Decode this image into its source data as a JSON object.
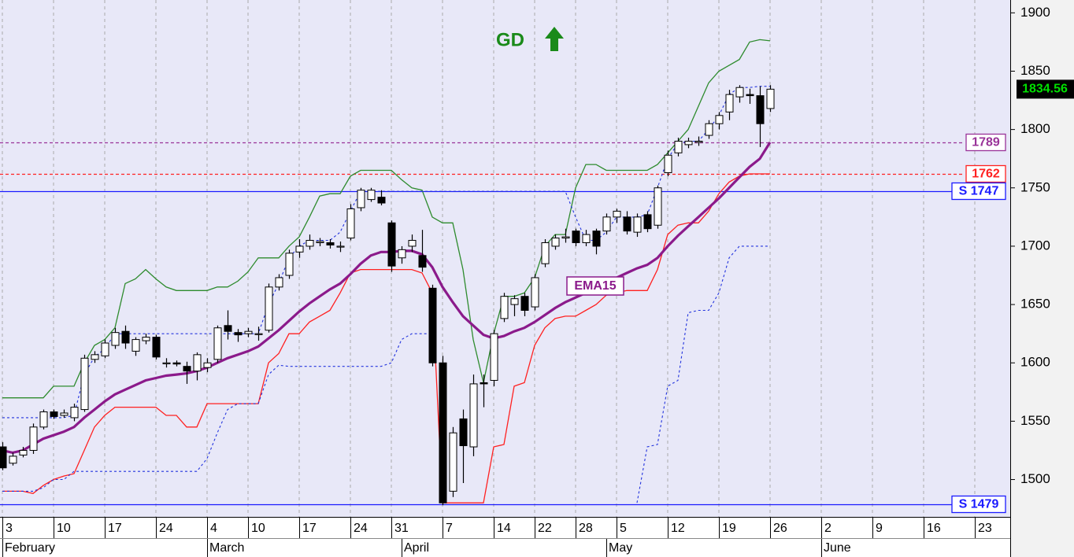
{
  "chart_data": {
    "type": "candlestick",
    "signal": {
      "text": "GD",
      "color": "#1a8a1a"
    },
    "categories": [
      "3",
      null,
      null,
      null,
      null,
      "10",
      null,
      null,
      null,
      null,
      "17",
      null,
      null,
      null,
      null,
      "24",
      null,
      null,
      null,
      null,
      "4",
      null,
      null,
      null,
      "10",
      null,
      null,
      null,
      null,
      "17",
      null,
      null,
      null,
      null,
      "24",
      null,
      null,
      null,
      "31",
      null,
      null,
      null,
      null,
      "7",
      null,
      null,
      null,
      null,
      "14",
      null,
      null,
      null,
      "22",
      null,
      null,
      null,
      "28",
      null,
      null,
      null,
      "5",
      null,
      null,
      null,
      null,
      "12",
      null,
      null,
      null,
      null,
      "19",
      null,
      null,
      null,
      null,
      "26",
      null,
      null,
      null,
      null,
      "2",
      null,
      null,
      null,
      null,
      "9",
      null,
      null,
      null,
      null,
      "16",
      null,
      null,
      null,
      null,
      "23",
      null,
      null,
      null
    ],
    "months": [
      "February",
      null,
      null,
      null,
      null,
      null,
      null,
      null,
      null,
      null,
      null,
      null,
      null,
      null,
      null,
      null,
      null,
      null,
      null,
      null,
      "March",
      null,
      null,
      null,
      null,
      null,
      null,
      null,
      null,
      null,
      null,
      null,
      null,
      null,
      null,
      null,
      null,
      null,
      null,
      "April",
      null,
      null,
      null,
      null,
      null,
      null,
      null,
      null,
      null,
      null,
      null,
      null,
      null,
      null,
      null,
      null,
      null,
      null,
      null,
      "May",
      null,
      null,
      null,
      null,
      null,
      null,
      null,
      null,
      null,
      null,
      null,
      null,
      null,
      null,
      null,
      null,
      null,
      null,
      null,
      null,
      "June",
      null,
      null,
      null,
      null,
      null,
      null,
      null,
      null,
      null,
      null,
      null,
      null,
      null,
      null,
      null,
      null,
      null,
      null
    ],
    "open": [
      1528,
      1514,
      1521,
      1525,
      1545,
      1558,
      1555,
      1553,
      1560,
      1603,
      1606,
      1615,
      1627,
      1610,
      1619,
      1622,
      1600,
      1600,
      1597,
      1593,
      1596,
      1603,
      1632,
      1626,
      1625,
      1625,
      1628,
      1665,
      1675,
      1695,
      1700,
      1703,
      1703,
      1700,
      1707,
      1733,
      1740,
      1742,
      1720,
      1690,
      1700,
      1692,
      1664,
      1600,
      1490,
      1552,
      1528,
      1583,
      1585,
      1638,
      1650,
      1657,
      1648,
      1685,
      1700,
      1707,
      1713,
      1703,
      1713,
      1713,
      1725,
      1725,
      1712,
      1727,
      1718,
      1763,
      1780,
      1787,
      1789,
      1795,
      1805,
      1815,
      1828,
      1830,
      1829,
      1818,
      null,
      null,
      null,
      null,
      null,
      null,
      null,
      null,
      null,
      null,
      null,
      null,
      null,
      null,
      null,
      null,
      null,
      null,
      null,
      null,
      null,
      null,
      null
    ],
    "high": [
      1532,
      1523,
      1528,
      1548,
      1560,
      1560,
      1560,
      1565,
      1607,
      1610,
      1620,
      1630,
      1632,
      1622,
      1625,
      1624,
      1604,
      1602,
      1601,
      1609,
      1604,
      1632,
      1645,
      1629,
      1630,
      1631,
      1668,
      1676,
      1697,
      1706,
      1710,
      1707,
      1706,
      1704,
      1736,
      1750,
      1750,
      1748,
      1722,
      1700,
      1710,
      1714,
      1667,
      1606,
      1545,
      1560,
      1590,
      1590,
      1628,
      1660,
      1658,
      1660,
      1676,
      1706,
      1710,
      1715,
      1715,
      1714,
      1715,
      1728,
      1732,
      1730,
      1728,
      1730,
      1752,
      1782,
      1793,
      1793,
      1794,
      1808,
      1815,
      1834,
      1838,
      1835,
      1837,
      1838,
      null,
      null,
      null,
      null,
      null,
      null,
      null,
      null,
      null,
      null,
      null,
      null,
      null,
      null,
      null,
      null,
      null,
      null,
      null,
      null,
      null,
      null,
      null
    ],
    "low": [
      1508,
      1512,
      1519,
      1522,
      1543,
      1552,
      1553,
      1550,
      1558,
      1600,
      1604,
      1612,
      1612,
      1606,
      1616,
      1603,
      1596,
      1597,
      1582,
      1585,
      1592,
      1600,
      1620,
      1618,
      1622,
      1619,
      1626,
      1662,
      1672,
      1690,
      1697,
      1700,
      1698,
      1695,
      1705,
      1730,
      1738,
      1735,
      1678,
      1685,
      1695,
      1678,
      1597,
      1478,
      1485,
      1497,
      1520,
      1562,
      1580,
      1635,
      1640,
      1640,
      1645,
      1682,
      1697,
      1703,
      1700,
      1700,
      1693,
      1710,
      1720,
      1710,
      1708,
      1712,
      1715,
      1760,
      1777,
      1784,
      1786,
      1792,
      1800,
      1808,
      1823,
      1822,
      1785,
      1815,
      null,
      null,
      null,
      null,
      null,
      null,
      null,
      null,
      null,
      null,
      null,
      null,
      null,
      null,
      null,
      null,
      null,
      null,
      null,
      null,
      null,
      null,
      null
    ],
    "close": [
      1510,
      1520,
      1525,
      1545,
      1558,
      1554,
      1557,
      1562,
      1604,
      1607,
      1617,
      1626,
      1617,
      1620,
      1622,
      1605,
      1600,
      1599,
      1593,
      1607,
      1600,
      1630,
      1627,
      1624,
      1627,
      1625,
      1665,
      1673,
      1694,
      1700,
      1705,
      1704,
      1701,
      1700,
      1732,
      1748,
      1748,
      1737,
      1683,
      1697,
      1705,
      1682,
      1600,
      1480,
      1540,
      1529,
      1582,
      1582,
      1625,
      1657,
      1655,
      1645,
      1673,
      1703,
      1707,
      1708,
      1703,
      1710,
      1700,
      1725,
      1730,
      1713,
      1725,
      1715,
      1750,
      1778,
      1790,
      1790,
      1790,
      1805,
      1812,
      1830,
      1836,
      1829,
      1805,
      1834.56,
      null,
      null,
      null,
      null,
      null,
      null,
      null,
      null,
      null,
      null,
      null,
      null,
      null,
      null,
      null,
      null,
      null,
      null,
      null,
      null,
      null,
      null,
      null
    ],
    "lines": [
      {
        "color": "#2e8b2e",
        "width": 1.3,
        "dashed": false,
        "values": [
          1570,
          1570,
          1570,
          1570,
          1570,
          1580,
          1580,
          1580,
          1600,
          1615,
          1620,
          1630,
          1668,
          1672,
          1680,
          1672,
          1665,
          1662,
          1662,
          1662,
          1662,
          1665,
          1665,
          1670,
          1678,
          1690,
          1690,
          1690,
          1700,
          1708,
          1725,
          1743,
          1745,
          1745,
          1760,
          1765,
          1765,
          1765,
          1765,
          1757,
          1750,
          1748,
          1725,
          1720,
          1720,
          1680,
          1620,
          1583,
          1625,
          1657,
          1657,
          1660,
          1673,
          1700,
          1710,
          1710,
          1750,
          1770,
          1770,
          1765,
          1765,
          1765,
          1765,
          1765,
          1770,
          1780,
          1790,
          1800,
          1820,
          1840,
          1850,
          1855,
          1860,
          1875,
          1877,
          1876,
          null,
          null,
          null,
          null,
          null,
          null,
          null,
          null,
          null,
          null,
          null,
          null,
          null,
          null,
          null,
          null,
          null,
          null,
          null,
          null,
          null,
          null,
          null
        ]
      },
      {
        "color": "#ff2020",
        "width": 1.3,
        "dashed": false,
        "values": [
          1490,
          1490,
          1490,
          1488,
          1495,
          1500,
          1503,
          1505,
          1525,
          1545,
          1555,
          1562,
          1562,
          1562,
          1562,
          1562,
          1555,
          1555,
          1545,
          1545,
          1565,
          1565,
          1565,
          1565,
          1565,
          1565,
          1600,
          1608,
          1625,
          1625,
          1635,
          1640,
          1645,
          1660,
          1677,
          1680,
          1680,
          1680,
          1680,
          1680,
          1680,
          1677,
          1660,
          1480,
          1480,
          1480,
          1480,
          1480,
          1528,
          1530,
          1580,
          1583,
          1615,
          1630,
          1638,
          1640,
          1640,
          1645,
          1650,
          1658,
          1660,
          1662,
          1662,
          1662,
          1680,
          1710,
          1718,
          1720,
          1720,
          1730,
          1745,
          1755,
          1760,
          1762,
          1762,
          1762,
          null,
          null,
          null,
          null,
          null,
          null,
          null,
          null,
          null,
          null,
          null,
          null,
          null,
          null,
          null,
          null,
          null,
          null,
          null,
          null,
          null,
          null,
          null
        ]
      },
      {
        "color": "#2233dd",
        "width": 1.1,
        "dashed": true,
        "values": [
          1553,
          1553,
          1553,
          1553,
          1553,
          1553,
          1553,
          1555,
          1590,
          1605,
          1612,
          1625,
          1625,
          1625,
          1625,
          1625,
          1625,
          1625,
          1625,
          1625,
          1625,
          1625,
          1625,
          1625,
          1625,
          1625,
          1650,
          1668,
          1690,
          1700,
          1705,
          1705,
          1705,
          1712,
          1730,
          1747,
          1747,
          1747,
          1747,
          1747,
          1747,
          1747,
          1747,
          1747,
          1747,
          1747,
          1747,
          1747,
          1747,
          1747,
          1747,
          1747,
          1747,
          1747,
          1747,
          1747,
          1725,
          1705,
          1705,
          1712,
          1725,
          1725,
          1725,
          1727,
          1750,
          1775,
          1788,
          1790,
          1790,
          1800,
          1812,
          1830,
          1836,
          1836,
          1837,
          1837,
          null,
          null,
          null,
          null,
          null,
          null,
          null,
          null,
          null,
          null,
          null,
          null,
          null,
          null,
          null,
          null,
          null,
          null,
          null,
          null,
          null,
          null,
          null
        ]
      },
      {
        "color": "#2233dd",
        "width": 1.1,
        "dashed": true,
        "values": [
          1490,
          1490,
          1490,
          1490,
          1493,
          1500,
          1500,
          1507,
          1507,
          1507,
          1507,
          1507,
          1507,
          1507,
          1507,
          1507,
          1507,
          1507,
          1507,
          1507,
          1518,
          1540,
          1560,
          1565,
          1565,
          1565,
          1590,
          1598,
          1597,
          1597,
          1597,
          1597,
          1597,
          1597,
          1597,
          1597,
          1597,
          1597,
          1600,
          1620,
          1625,
          1625,
          1625,
          null,
          null,
          null,
          null,
          null,
          null,
          null,
          null,
          null,
          null,
          null,
          null,
          null,
          null,
          null,
          null,
          null,
          null,
          null,
          1480,
          1528,
          1530,
          1580,
          1585,
          1643,
          1645,
          1645,
          1660,
          1690,
          1700,
          1700,
          1700,
          1700,
          null,
          null,
          null,
          null,
          null,
          null,
          null,
          null,
          null,
          null,
          null,
          null,
          null,
          null,
          null,
          null,
          null,
          null,
          null,
          null,
          null,
          null,
          null
        ]
      },
      {
        "name": "EMA15",
        "color": "#8b1a8b",
        "width": 3.2,
        "dashed": false,
        "values": [
          1525,
          1523,
          1525,
          1530,
          1535,
          1538,
          1541,
          1545,
          1553,
          1560,
          1567,
          1573,
          1577,
          1581,
          1585,
          1587,
          1589,
          1590,
          1591,
          1593,
          1596,
          1600,
          1604,
          1607,
          1610,
          1614,
          1621,
          1628,
          1636,
          1644,
          1651,
          1657,
          1663,
          1668,
          1676,
          1685,
          1692,
          1695,
          1695,
          1696,
          1696,
          1693,
          1682,
          1665,
          1652,
          1640,
          1632,
          1624,
          1621,
          1623,
          1627,
          1630,
          1635,
          1641,
          1647,
          1652,
          1656,
          1660,
          1663,
          1668,
          1673,
          1677,
          1681,
          1684,
          1690,
          1700,
          1709,
          1717,
          1725,
          1733,
          1741,
          1750,
          1759,
          1768,
          1775,
          1789,
          null,
          null,
          null,
          null,
          null,
          null,
          null,
          null,
          null,
          null,
          null,
          null,
          null,
          null,
          null,
          null,
          null,
          null,
          null,
          null,
          null,
          null,
          null
        ]
      }
    ],
    "levels": [
      {
        "value": 1789,
        "color": "#993399",
        "dashed": true
      },
      {
        "value": 1762,
        "color": "#ff2020",
        "dashed": true
      },
      {
        "value": 1747,
        "label": "S 1747",
        "color": "#1a1aff",
        "dashed": false
      },
      {
        "value": 1479,
        "label": "S 1479",
        "color": "#1a1aff",
        "dashed": false
      }
    ],
    "ylim": [
      1468,
      1911
    ],
    "yticks": [
      1500,
      1550,
      1600,
      1650,
      1700,
      1750,
      1800,
      1850,
      1900
    ],
    "grid": true
  }
}
